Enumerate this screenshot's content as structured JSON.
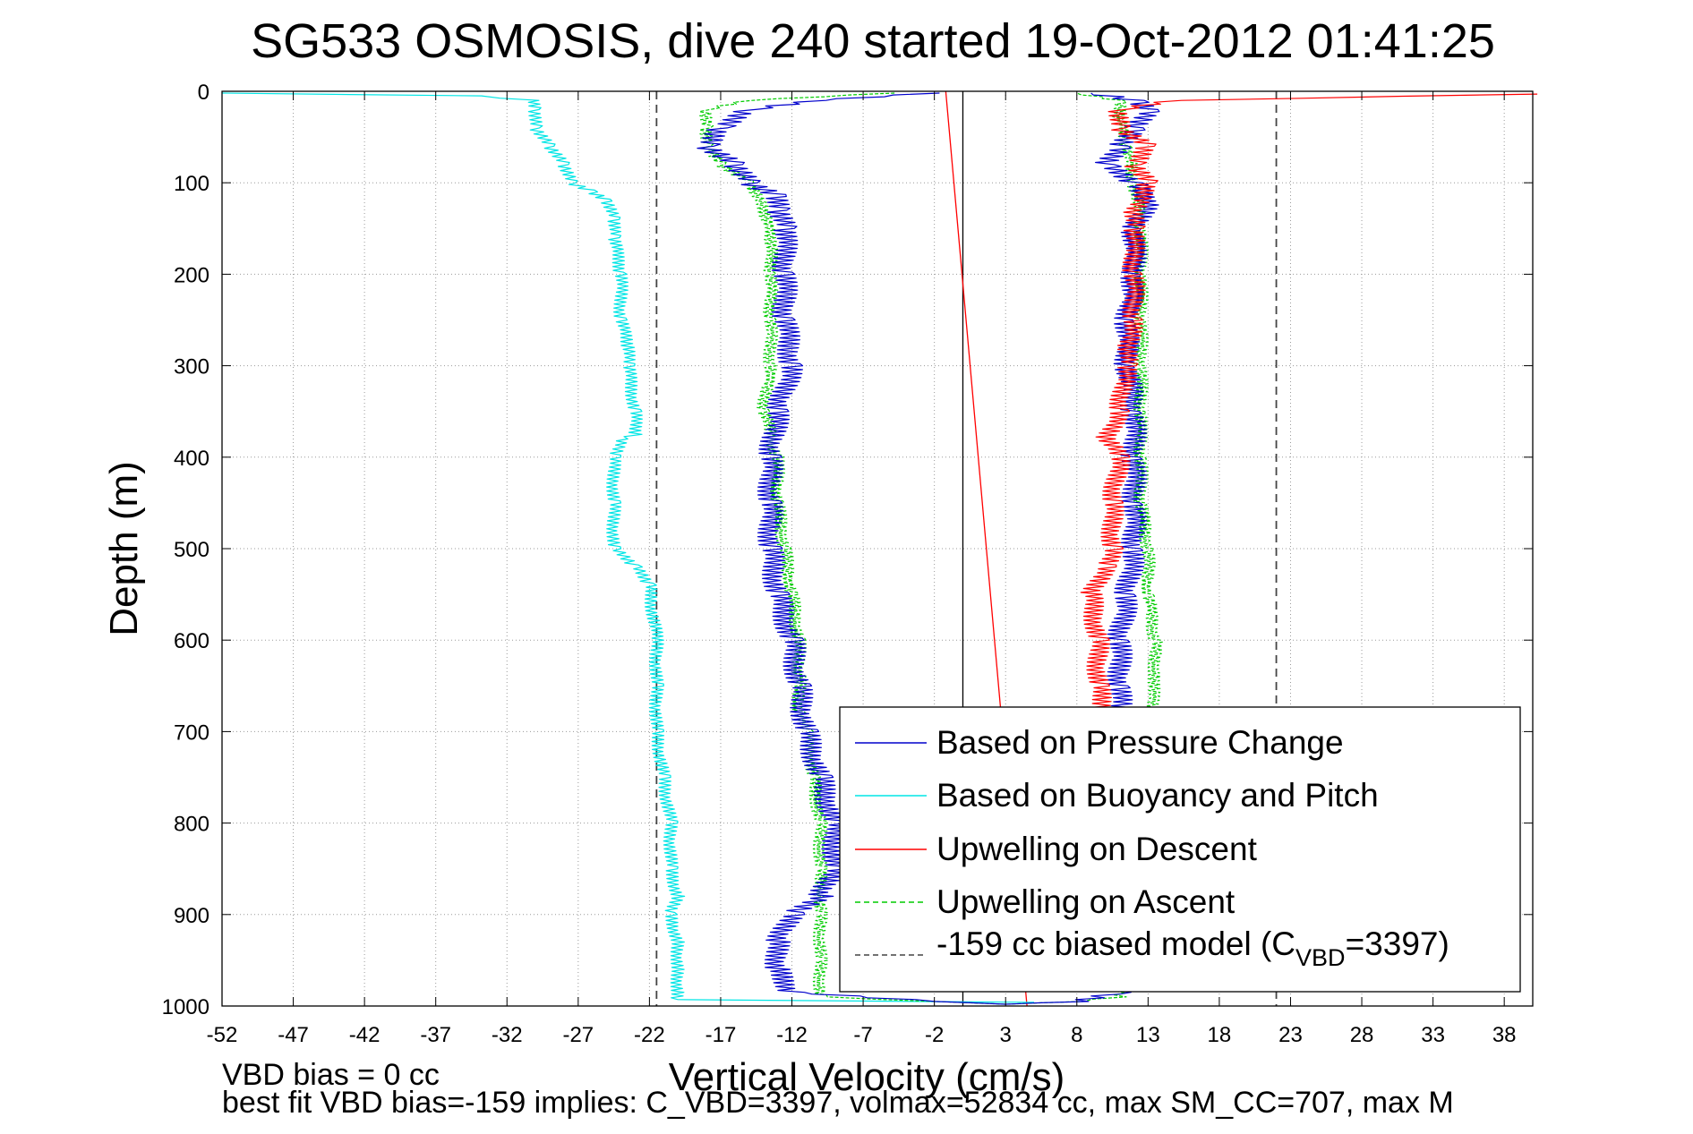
{
  "chart_data": {
    "type": "line",
    "title": "SG533 OSMOSIS, dive 240 started 19-Oct-2012 01:41:25",
    "xlabel": "Vertical Velocity (cm/s)",
    "ylabel": "Depth (m)",
    "xlim": [
      -52,
      40
    ],
    "ylim": [
      0,
      1000
    ],
    "y_reversed": true,
    "x_ticks": [
      -52,
      -47,
      -42,
      -37,
      -32,
      -27,
      -22,
      -17,
      -12,
      -7,
      -2,
      3,
      8,
      13,
      18,
      23,
      28,
      33,
      38
    ],
    "y_ticks": [
      0,
      100,
      200,
      300,
      400,
      500,
      600,
      700,
      800,
      900,
      1000
    ],
    "grid": true,
    "legend_position": "bottom-right",
    "series": [
      {
        "name": "Based on Pressure Change",
        "color": "#0000cc",
        "style": "solid",
        "depth": [
          2,
          10,
          20,
          40,
          60,
          80,
          100,
          115,
          130,
          150,
          200,
          250,
          300,
          350,
          400,
          450,
          500,
          550,
          600,
          650,
          700,
          750,
          800,
          850,
          880,
          900,
          930,
          960,
          985,
          995,
          998,
          995,
          985,
          960,
          930,
          900,
          850,
          800,
          750,
          700,
          650,
          600,
          550,
          500,
          450,
          400,
          350,
          300,
          250,
          200,
          150,
          120,
          100,
          80,
          60,
          40,
          20,
          10,
          2
        ],
        "velocity": [
          -2,
          -10,
          -15,
          -17,
          -18,
          -16,
          -15,
          -13,
          -13,
          -12.5,
          -12.5,
          -12.5,
          -12,
          -13,
          -13.5,
          -13.5,
          -13.5,
          -13,
          -12,
          -11.5,
          -11,
          -10,
          -9,
          -9,
          -10,
          -12,
          -13,
          -13,
          -12,
          -2,
          3,
          8,
          11,
          11,
          11,
          11,
          11,
          11,
          11,
          11,
          11,
          11,
          11.5,
          12,
          12,
          12,
          12,
          11.5,
          11.5,
          12,
          12,
          13,
          12,
          10,
          11,
          12,
          13,
          12,
          9
        ]
      },
      {
        "name": "Based on Buoyancy and Pitch",
        "color": "#00e5e5",
        "style": "solid",
        "depth": [
          2,
          5,
          10,
          20,
          40,
          60,
          80,
          100,
          110,
          120,
          140,
          160,
          200,
          250,
          280,
          300,
          350,
          375,
          380,
          400,
          450,
          500,
          520,
          540,
          600,
          650,
          700,
          750,
          800,
          850,
          880,
          900,
          930,
          960,
          985,
          993,
          996
        ],
        "velocity": [
          -52,
          -34,
          -30,
          -30,
          -30,
          -29,
          -28,
          -27.5,
          -26,
          -25,
          -24.5,
          -24.5,
          -24,
          -24,
          -23.5,
          -23.5,
          -23,
          -23,
          -24,
          -24.5,
          -24.5,
          -24.5,
          -23,
          -22,
          -21.5,
          -21.5,
          -21.5,
          -21,
          -20.5,
          -20.5,
          -20,
          -20.5,
          -20,
          -20,
          -20,
          -20,
          5
        ]
      },
      {
        "name": "Upwelling on Descent",
        "color": "#ff0000",
        "style": "solid",
        "depth": [
          3,
          10,
          20,
          40,
          60,
          80,
          100,
          130,
          150,
          200,
          250,
          280,
          300,
          350,
          380,
          400,
          450,
          500,
          520,
          550,
          600,
          650,
          680
        ],
        "velocity": [
          40,
          15,
          11,
          11,
          13,
          12,
          13,
          12,
          12,
          12,
          12,
          11.5,
          11.5,
          11,
          10,
          11,
          10.5,
          10.5,
          10,
          9,
          9.5,
          9.5,
          10
        ]
      },
      {
        "name": "Upwelling on Ascent",
        "color": "#00cc00",
        "style": "dashed",
        "depth": [
          2,
          10,
          20,
          40,
          60,
          80,
          100,
          130,
          160,
          200,
          250,
          300,
          350,
          400,
          450,
          500,
          550,
          600,
          640,
          680,
          700,
          750,
          800,
          850,
          900,
          950,
          990,
          995,
          998,
          995,
          990,
          960,
          930,
          900,
          850,
          800,
          700,
          640,
          600,
          550,
          500,
          450,
          400,
          350,
          300,
          250,
          200,
          150,
          100,
          60,
          30,
          10,
          2
        ],
        "velocity": [
          -5,
          -15,
          -18,
          -18,
          -18,
          -17,
          -15,
          -14,
          -13.5,
          -13.5,
          -13.5,
          -13.5,
          -14,
          -13,
          -13,
          -12.5,
          -12,
          -11.5,
          -11.5,
          -11.5,
          -11,
          -10.5,
          -10,
          -10,
          -10,
          -10,
          -10,
          -2,
          3,
          8,
          11,
          11,
          11,
          11,
          12,
          12,
          13,
          13.5,
          13.5,
          13,
          13,
          12.5,
          12.5,
          12.5,
          12.5,
          12.5,
          12.5,
          12.5,
          12,
          11.5,
          11,
          11,
          8
        ]
      },
      {
        "name": "-159 cc biased model (C_VBD=3397)",
        "legend_main": "-159 cc biased model (C",
        "legend_sub": "VBD",
        "legend_tail": "=3397)",
        "color": "#444444",
        "style": "dashed",
        "lines": [
          {
            "depth": [
              0,
              1000
            ],
            "velocity": [
              -21.5,
              -21.5
            ]
          },
          {
            "depth": [
              0,
              1000
            ],
            "velocity": [
              22,
              22
            ]
          }
        ]
      }
    ],
    "zero_line": {
      "color": "#000000",
      "depth": [
        0,
        1000
      ],
      "velocity": [
        0,
        0
      ]
    },
    "model_line": {
      "color": "#ff0000",
      "depth": [
        0,
        1000
      ],
      "velocity": [
        -1.2,
        4.5
      ]
    },
    "annotations": [
      "VBD bias = 0 cc",
      "best fit VBD bias=-159 implies: C_VBD=3397, volmax=52834 cc, max SM_CC=707, max M"
    ]
  }
}
